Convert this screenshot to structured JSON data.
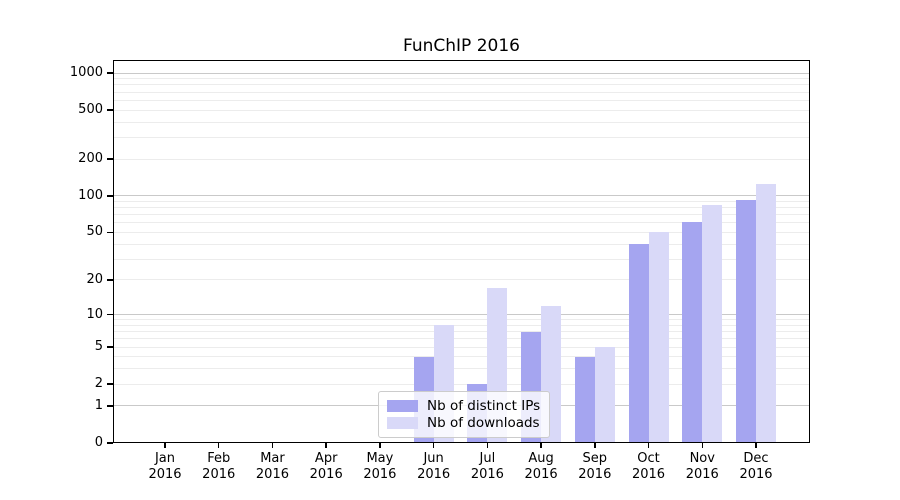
{
  "chart_data": {
    "type": "bar",
    "title": "FunChIP 2016",
    "categories": [
      "Jan 2016",
      "Feb 2016",
      "Mar 2016",
      "Apr 2016",
      "May 2016",
      "Jun 2016",
      "Jul 2016",
      "Aug 2016",
      "Sep 2016",
      "Oct 2016",
      "Nov 2016",
      "Dec 2016"
    ],
    "series": [
      {
        "name": "Nb of distinct IPs",
        "color": "#a5a5f0",
        "values": [
          0,
          0,
          0,
          0,
          0,
          4,
          2,
          7,
          4,
          40,
          61,
          92
        ]
      },
      {
        "name": "Nb of downloads",
        "color": "#d9d9f8",
        "values": [
          0,
          0,
          0,
          0,
          0,
          8,
          17,
          12,
          5,
          50,
          84,
          125
        ]
      }
    ],
    "xlabel": "",
    "ylabel": "",
    "yscale": "log1p",
    "ytick_values": [
      0,
      1,
      2,
      5,
      10,
      20,
      50,
      100,
      200,
      500,
      1000
    ],
    "ytick_labels": [
      "0",
      "1",
      "2",
      "5",
      "10",
      "20",
      "50",
      "100",
      "200",
      "500",
      "1000"
    ],
    "ylim": [
      0,
      1277
    ],
    "grid": "horizontal major (1,10,100,1000) + minor (2-9,20-90,200-900)",
    "legend_position": "lower center",
    "colors": {
      "grid_major": "#c9c9c9",
      "grid_minor": "#ececec",
      "spine": "#000000",
      "background": "#ffffff"
    }
  }
}
